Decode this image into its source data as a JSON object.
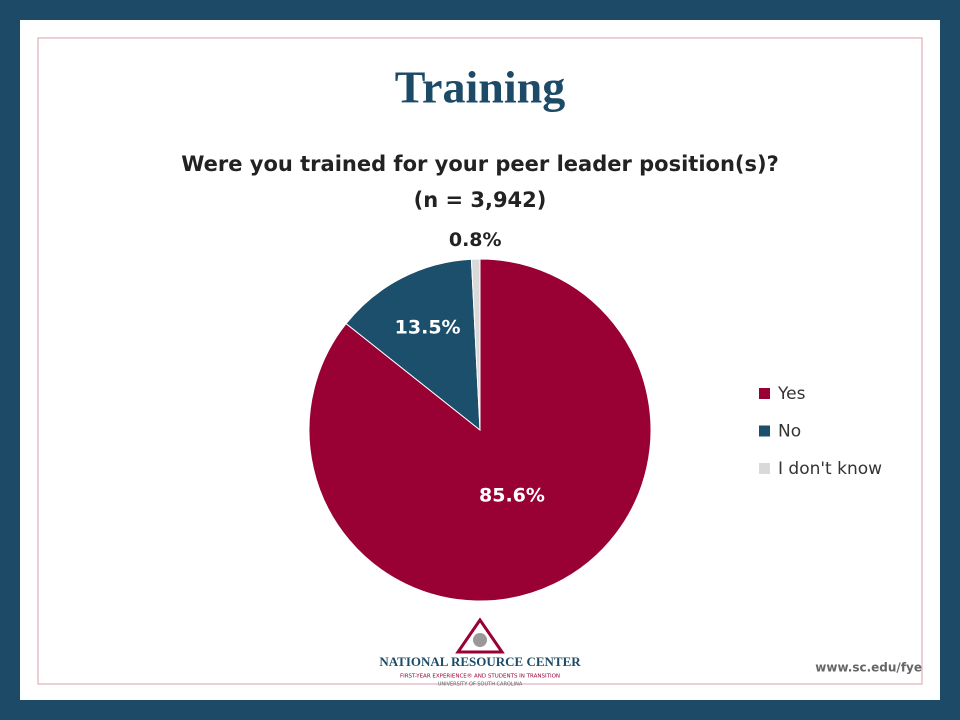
{
  "heading": "Training",
  "chart_data": {
    "type": "pie",
    "title": "Were you trained for your peer leader position(s)?",
    "subtitle": "(n = 3,942)",
    "categories": [
      "Yes",
      "No",
      "I don't know"
    ],
    "values": [
      85.6,
      13.5,
      0.8
    ],
    "value_labels": [
      "85.6%",
      "13.5%",
      "0.8%"
    ],
    "colors": [
      "#990033",
      "#1b4f6b",
      "#d9d9d9"
    ],
    "legend": "right"
  },
  "logo": {
    "name": "NATIONAL RESOURCE CENTER",
    "tagline": "FIRST-YEAR EXPERIENCE® AND STUDENTS IN TRANSITION",
    "university": "UNIVERSITY OF SOUTH CAROLINA"
  },
  "url": "www.sc.edu/fye"
}
